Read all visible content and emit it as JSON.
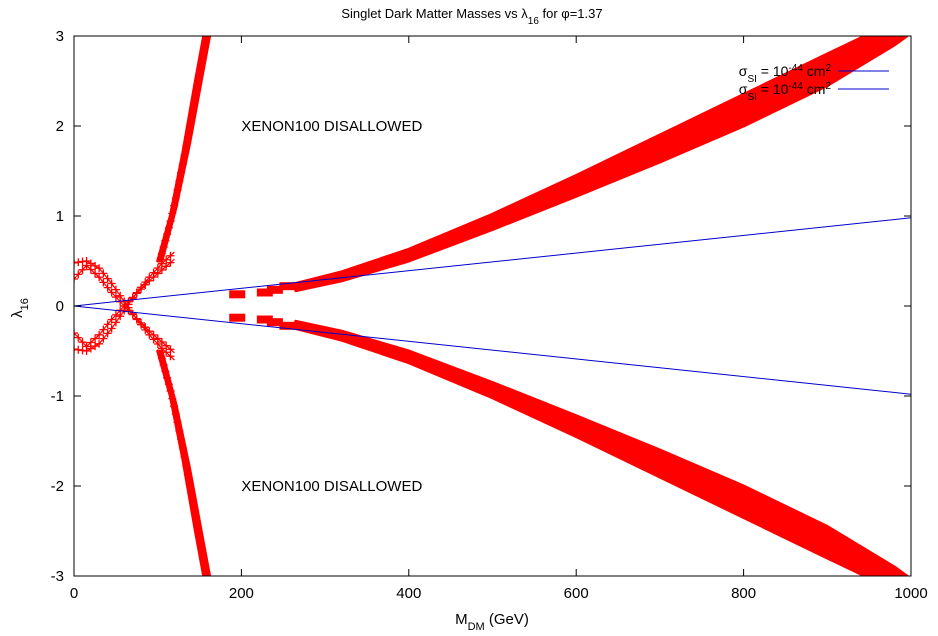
{
  "chart_data": {
    "type": "scatter",
    "title": {
      "main": "Singlet Dark Matter Masses vs ",
      "sym": "λ",
      "sub": "16",
      "tail": " for φ=1.37"
    },
    "xlabel": {
      "main": "M",
      "sub": "DM",
      "tail": " (GeV)"
    },
    "ylabel": {
      "sym": "λ",
      "sub": "16"
    },
    "xlim": [
      0,
      1000
    ],
    "ylim": [
      -3,
      3
    ],
    "xticks": [
      "0",
      "200",
      "400",
      "600",
      "800",
      "1000"
    ],
    "yticks": [
      "-3",
      "-2",
      "-1",
      "0",
      "1",
      "2",
      "3"
    ],
    "grid": false,
    "legend": {
      "position": "top-right",
      "entries": [
        {
          "sym": "σ",
          "sub": "SI",
          "eq": " = 10",
          "sup": "-44",
          "unit": " cm",
          "sup2": "2",
          "color": "#0000cc"
        },
        {
          "sym": "σ",
          "sub": "SI",
          "eq": " = 10",
          "sup": "-44",
          "unit": " cm",
          "sup2": "2",
          "color": "#0000cc"
        }
      ]
    },
    "annotations": [
      {
        "text": "XENON100 DISALLOWED",
        "x": 200,
        "y": 2.0
      },
      {
        "text": "XENON100 DISALLOWED",
        "x": 200,
        "y": -2.0
      }
    ],
    "series": [
      {
        "kind": "band",
        "color": "#ff0000",
        "upper_edge": [
          [
            265,
            0.25
          ],
          [
            320,
            0.38
          ],
          [
            400,
            0.63
          ],
          [
            500,
            1.02
          ],
          [
            600,
            1.45
          ],
          [
            700,
            1.9
          ],
          [
            800,
            2.35
          ],
          [
            900,
            2.8
          ],
          [
            945,
            3.0
          ]
        ],
        "lower_edge": [
          [
            265,
            0.17
          ],
          [
            320,
            0.28
          ],
          [
            400,
            0.5
          ],
          [
            500,
            0.85
          ],
          [
            600,
            1.22
          ],
          [
            700,
            1.6
          ],
          [
            800,
            2.0
          ],
          [
            900,
            2.45
          ],
          [
            980,
            2.9
          ],
          [
            995,
            3.0
          ]
        ]
      },
      {
        "kind": "band",
        "color": "#ff0000",
        "upper_edge": [
          [
            265,
            -0.17
          ],
          [
            320,
            -0.28
          ],
          [
            400,
            -0.5
          ],
          [
            500,
            -0.85
          ],
          [
            600,
            -1.22
          ],
          [
            700,
            -1.6
          ],
          [
            800,
            -2.0
          ],
          [
            900,
            -2.45
          ],
          [
            980,
            -2.9
          ],
          [
            995,
            -3.0
          ]
        ],
        "lower_edge": [
          [
            265,
            -0.25
          ],
          [
            320,
            -0.38
          ],
          [
            400,
            -0.63
          ],
          [
            500,
            -1.02
          ],
          [
            600,
            -1.45
          ],
          [
            700,
            -1.9
          ],
          [
            800,
            -2.35
          ],
          [
            900,
            -2.8
          ],
          [
            945,
            -3.0
          ]
        ]
      },
      {
        "kind": "points",
        "color": "#ff0000",
        "x": [
          195,
          195,
          228,
          228,
          240,
          240,
          255,
          255
        ],
        "y": [
          0.13,
          -0.13,
          0.15,
          -0.15,
          0.18,
          -0.18,
          0.22,
          -0.22
        ]
      },
      {
        "kind": "band",
        "color": "#ff0000",
        "upper_edge": [
          [
            100,
            0.5
          ],
          [
            115,
            1.0
          ],
          [
            130,
            1.7
          ],
          [
            145,
            2.5
          ],
          [
            155,
            3.0
          ]
        ],
        "lower_edge": [
          [
            105,
            0.5
          ],
          [
            122,
            1.1
          ],
          [
            138,
            1.8
          ],
          [
            152,
            2.5
          ],
          [
            162,
            3.0
          ]
        ]
      },
      {
        "kind": "band",
        "color": "#ff0000",
        "upper_edge": [
          [
            105,
            -0.5
          ],
          [
            122,
            -1.1
          ],
          [
            138,
            -1.8
          ],
          [
            152,
            -2.5
          ],
          [
            162,
            -3.0
          ]
        ],
        "lower_edge": [
          [
            100,
            -0.5
          ],
          [
            115,
            -1.0
          ],
          [
            130,
            -1.7
          ],
          [
            145,
            -2.5
          ],
          [
            155,
            -3.0
          ]
        ]
      },
      {
        "kind": "curves",
        "color": "#ff0000",
        "x": [
          0,
          15,
          30,
          45,
          60,
          75,
          90,
          105,
          120
        ],
        "branches": [
          [
            0.48,
            0.5,
            0.42,
            0.25,
            0.05,
            -0.15,
            -0.32,
            -0.47,
            -0.6
          ],
          [
            0.3,
            0.45,
            0.32,
            0.15,
            0.0,
            -0.14,
            -0.28,
            -0.4,
            -0.52
          ],
          [
            -0.48,
            -0.5,
            -0.42,
            -0.25,
            -0.05,
            0.15,
            0.32,
            0.47,
            0.6
          ],
          [
            -0.3,
            -0.45,
            -0.32,
            -0.15,
            0.0,
            0.14,
            0.28,
            0.4,
            0.52
          ]
        ]
      },
      {
        "kind": "line",
        "name": "σSI = 10^-44 cm^2",
        "color": "#0000cc",
        "x": [
          0,
          1000
        ],
        "y": [
          0,
          0.98
        ]
      },
      {
        "kind": "line",
        "name": "σSI = 10^-44 cm^2",
        "color": "#0000cc",
        "x": [
          0,
          1000
        ],
        "y": [
          0,
          -0.98
        ]
      }
    ]
  }
}
